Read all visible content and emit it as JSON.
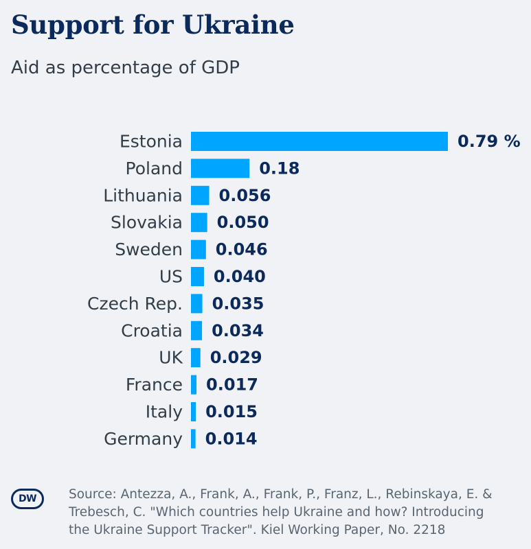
{
  "title": "Support for Ukraine",
  "subtitle": "Aid as percentage of GDP",
  "source": "Source: Antezza, A., Frank, A., Frank, P., Franz, L., Rebinskaya, E. & Trebesch, C. \"Which countries help Ukraine and how? Introducing the Ukraine Support Tracker\". Kiel Working Paper, No. 2218",
  "logo_text": "DW",
  "colors": {
    "bar": "#00a5ff",
    "label": "#333d48",
    "value": "#0b2a5b",
    "title": "#0b2a5b"
  },
  "chart_data": {
    "type": "bar",
    "orientation": "horizontal",
    "categories": [
      "Estonia",
      "Poland",
      "Lithuania",
      "Slovakia",
      "Sweden",
      "US",
      "Czech Rep.",
      "Croatia",
      "UK",
      "France",
      "Italy",
      "Germany"
    ],
    "values": [
      0.79,
      0.18,
      0.056,
      0.05,
      0.046,
      0.04,
      0.035,
      0.034,
      0.029,
      0.017,
      0.015,
      0.014
    ],
    "value_labels": [
      "0.79 %",
      "0.18",
      "0.056",
      "0.050",
      "0.046",
      "0.040",
      "0.035",
      "0.034",
      "0.029",
      "0.017",
      "0.015",
      "0.014"
    ],
    "title": "Support for Ukraine",
    "subtitle": "Aid as percentage of GDP",
    "xlabel": "",
    "ylabel": "",
    "xlim": [
      0,
      0.79
    ],
    "grid": false,
    "legend": "none"
  }
}
